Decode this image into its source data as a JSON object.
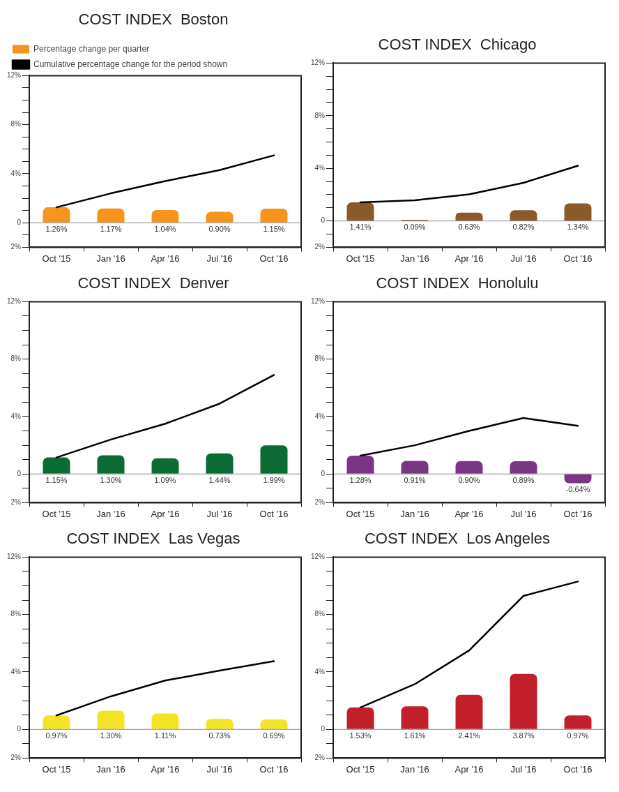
{
  "chart_data": [
    {
      "type": "bar",
      "title": "COST INDEX  Boston",
      "categories": [
        "Oct '15",
        "Jan '16",
        "Apr '16",
        "Jul '16",
        "Oct '16"
      ],
      "legend": "top",
      "marker": "none",
      "ylim": [
        -2,
        12
      ],
      "yticks": [
        {
          "value": -2,
          "label": "2%"
        },
        {
          "value": -1,
          "label": null
        },
        {
          "value": 0,
          "label": "0"
        },
        {
          "value": 1,
          "label": null
        },
        {
          "value": 2,
          "label": null
        },
        {
          "value": 3,
          "label": null
        },
        {
          "value": 4,
          "label": "4%"
        },
        {
          "value": 5,
          "label": null
        },
        {
          "value": 6,
          "label": null
        },
        {
          "value": 7,
          "label": null
        },
        {
          "value": 8,
          "label": "8%"
        },
        {
          "value": 9,
          "label": null
        },
        {
          "value": 10,
          "label": null
        },
        {
          "value": 11,
          "label": null
        },
        {
          "value": 12,
          "label": "12%"
        }
      ],
      "series": [
        {
          "name": "Percentage change per quarter",
          "color": "#f7941d",
          "values": [
            1.26,
            1.17,
            1.04,
            0.9,
            1.15
          ],
          "value_labels": [
            "1.26%",
            "1.17%",
            "1.04%",
            "0.90%",
            "1.15%"
          ]
        },
        {
          "name": "Cumulative percentage change for the period shown",
          "type": "line",
          "color": "#000000",
          "values": [
            1.26,
            2.4,
            3.4,
            4.3,
            5.5
          ]
        }
      ]
    },
    {
      "type": "bar",
      "title": "COST INDEX  Chicago",
      "categories": [
        "Oct '15",
        "Jan '16",
        "Apr '16",
        "Jul '16",
        "Oct '16"
      ],
      "marker": "none",
      "ylim": [
        -2,
        12
      ],
      "yticks": [
        {
          "value": -2,
          "label": "2%"
        },
        {
          "value": -1,
          "label": null
        },
        {
          "value": 0,
          "label": "0"
        },
        {
          "value": 1,
          "label": null
        },
        {
          "value": 2,
          "label": null
        },
        {
          "value": 3,
          "label": null
        },
        {
          "value": 4,
          "label": "4%"
        },
        {
          "value": 5,
          "label": null
        },
        {
          "value": 6,
          "label": null
        },
        {
          "value": 7,
          "label": null
        },
        {
          "value": 8,
          "label": "8%"
        },
        {
          "value": 9,
          "label": null
        },
        {
          "value": 10,
          "label": null
        },
        {
          "value": 11,
          "label": null
        },
        {
          "value": 12,
          "label": "12%"
        }
      ],
      "series": [
        {
          "color": "#8b5a2b",
          "values": [
            1.41,
            0.09,
            0.63,
            0.82,
            1.34
          ],
          "value_labels": [
            "1.41%",
            "0.09%",
            "0.63%",
            "0.82%",
            "1.34%"
          ]
        },
        {
          "type": "line",
          "color": "#000000",
          "values": [
            1.41,
            1.57,
            2.03,
            2.9,
            4.2
          ]
        }
      ]
    },
    {
      "type": "bar",
      "title": "COST INDEX  Denver",
      "categories": [
        "Oct '15",
        "Jan '16",
        "Apr '16",
        "Jul '16",
        "Oct '16"
      ],
      "marker": "none",
      "ylim": [
        -2,
        12
      ],
      "yticks": [
        {
          "value": -2,
          "label": "2%"
        },
        {
          "value": -1,
          "label": null
        },
        {
          "value": 0,
          "label": "0"
        },
        {
          "value": 1,
          "label": null
        },
        {
          "value": 2,
          "label": null
        },
        {
          "value": 3,
          "label": null
        },
        {
          "value": 4,
          "label": "4%"
        },
        {
          "value": 5,
          "label": null
        },
        {
          "value": 6,
          "label": null
        },
        {
          "value": 7,
          "label": null
        },
        {
          "value": 8,
          "label": "8%"
        },
        {
          "value": 9,
          "label": null
        },
        {
          "value": 10,
          "label": null
        },
        {
          "value": 11,
          "label": null
        },
        {
          "value": 12,
          "label": "12%"
        }
      ],
      "series": [
        {
          "color": "#0b6b35",
          "values": [
            1.15,
            1.3,
            1.09,
            1.44,
            1.99
          ],
          "value_labels": [
            "1.15%",
            "1.30%",
            "1.09%",
            "1.44%",
            "1.99%"
          ]
        },
        {
          "type": "line",
          "color": "#000000",
          "values": [
            1.15,
            2.4,
            3.5,
            4.9,
            6.9
          ]
        }
      ]
    },
    {
      "type": "bar",
      "title": "COST INDEX  Honolulu",
      "categories": [
        "Oct '15",
        "Jan '16",
        "Apr '16",
        "Jul '16",
        "Oct '16"
      ],
      "marker": "none",
      "ylim": [
        -2,
        12
      ],
      "yticks": [
        {
          "value": -2,
          "label": "2%"
        },
        {
          "value": -1,
          "label": null
        },
        {
          "value": 0,
          "label": "0"
        },
        {
          "value": 1,
          "label": null
        },
        {
          "value": 2,
          "label": null
        },
        {
          "value": 3,
          "label": null
        },
        {
          "value": 4,
          "label": "4%"
        },
        {
          "value": 5,
          "label": null
        },
        {
          "value": 6,
          "label": null
        },
        {
          "value": 7,
          "label": null
        },
        {
          "value": 8,
          "label": "8%"
        },
        {
          "value": 9,
          "label": null
        },
        {
          "value": 10,
          "label": null
        },
        {
          "value": 11,
          "label": null
        },
        {
          "value": 12,
          "label": "12%"
        }
      ],
      "series": [
        {
          "color": "#7b3585",
          "values": [
            1.28,
            0.91,
            0.9,
            0.89,
            -0.64
          ],
          "value_labels": [
            "1.28%",
            "0.91%",
            "0.90%",
            "0.89%",
            "-0.64%"
          ]
        },
        {
          "type": "line",
          "color": "#000000",
          "values": [
            1.28,
            2.0,
            3.0,
            3.9,
            3.35
          ]
        }
      ]
    },
    {
      "type": "bar",
      "title": "COST INDEX  Las Vegas",
      "categories": [
        "Oct '15",
        "Jan '16",
        "Apr '16",
        "Jul '16",
        "Oct '16"
      ],
      "marker": "none",
      "ylim": [
        -2,
        12
      ],
      "yticks": [
        {
          "value": -2,
          "label": "2%"
        },
        {
          "value": -1,
          "label": null
        },
        {
          "value": 0,
          "label": "0"
        },
        {
          "value": 1,
          "label": null
        },
        {
          "value": 2,
          "label": null
        },
        {
          "value": 3,
          "label": null
        },
        {
          "value": 4,
          "label": "4%"
        },
        {
          "value": 5,
          "label": null
        },
        {
          "value": 6,
          "label": null
        },
        {
          "value": 7,
          "label": null
        },
        {
          "value": 8,
          "label": "8%"
        },
        {
          "value": 9,
          "label": null
        },
        {
          "value": 10,
          "label": null
        },
        {
          "value": 11,
          "label": null
        },
        {
          "value": 12,
          "label": "12%"
        }
      ],
      "series": [
        {
          "color": "#f3e526",
          "values": [
            0.97,
            1.3,
            1.11,
            0.73,
            0.69
          ],
          "value_labels": [
            "0.97%",
            "1.30%",
            "1.11%",
            "0.73%",
            "0.69%"
          ]
        },
        {
          "type": "line",
          "color": "#000000",
          "values": [
            0.97,
            2.3,
            3.4,
            4.1,
            4.75
          ]
        }
      ]
    },
    {
      "type": "bar",
      "title": "COST INDEX  Los Angeles",
      "categories": [
        "Oct '15",
        "Jan '16",
        "Apr '16",
        "Jul '16",
        "Oct '16"
      ],
      "marker": "none",
      "ylim": [
        -2,
        12
      ],
      "yticks": [
        {
          "value": -2,
          "label": "2%"
        },
        {
          "value": -1,
          "label": null
        },
        {
          "value": 0,
          "label": "0"
        },
        {
          "value": 1,
          "label": null
        },
        {
          "value": 2,
          "label": null
        },
        {
          "value": 3,
          "label": null
        },
        {
          "value": 4,
          "label": "4%"
        },
        {
          "value": 5,
          "label": null
        },
        {
          "value": 6,
          "label": null
        },
        {
          "value": 7,
          "label": null
        },
        {
          "value": 8,
          "label": "8%"
        },
        {
          "value": 9,
          "label": null
        },
        {
          "value": 10,
          "label": null
        },
        {
          "value": 11,
          "label": null
        },
        {
          "value": 12,
          "label": "12%"
        }
      ],
      "series": [
        {
          "color": "#c1202b",
          "values": [
            1.53,
            1.61,
            2.41,
            3.87,
            0.97
          ],
          "value_labels": [
            "1.53%",
            "1.61%",
            "2.41%",
            "3.87%",
            "0.97%"
          ]
        },
        {
          "type": "line",
          "color": "#000000",
          "values": [
            1.53,
            3.15,
            5.5,
            9.3,
            10.3
          ]
        }
      ]
    }
  ]
}
